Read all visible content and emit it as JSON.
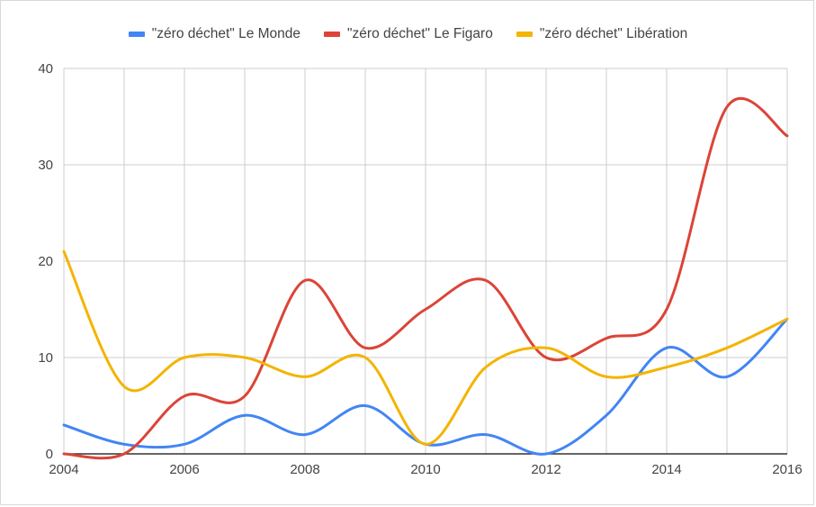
{
  "chart_data": {
    "type": "line",
    "title": "",
    "xlabel": "",
    "ylabel": "",
    "x": [
      2004,
      2005,
      2006,
      2007,
      2008,
      2009,
      2010,
      2011,
      2012,
      2013,
      2014,
      2015,
      2016
    ],
    "xticks": [
      "2004",
      "2006",
      "2008",
      "2010",
      "2012",
      "2014",
      "2016"
    ],
    "yticks": [
      "0",
      "10",
      "20",
      "30",
      "40"
    ],
    "xlim": [
      2004,
      2016
    ],
    "ylim": [
      0,
      40
    ],
    "grid": true,
    "legend_position": "top",
    "series": [
      {
        "name": "\"zéro déchet\" Le Monde",
        "color": "#4285f4",
        "values": [
          3,
          1,
          1,
          4,
          2,
          5,
          1,
          2,
          0,
          4,
          11,
          8,
          14
        ]
      },
      {
        "name": "\"zéro déchet\" Le Figaro",
        "color": "#db4437",
        "values": [
          0,
          0,
          6,
          6,
          18,
          11,
          15,
          18,
          10,
          12,
          15,
          36,
          33
        ]
      },
      {
        "name": "\"zéro déchet\" Libération",
        "color": "#f4b400",
        "values": [
          21,
          7,
          10,
          10,
          8,
          10,
          1,
          9,
          11,
          8,
          9,
          11,
          14
        ]
      }
    ]
  }
}
